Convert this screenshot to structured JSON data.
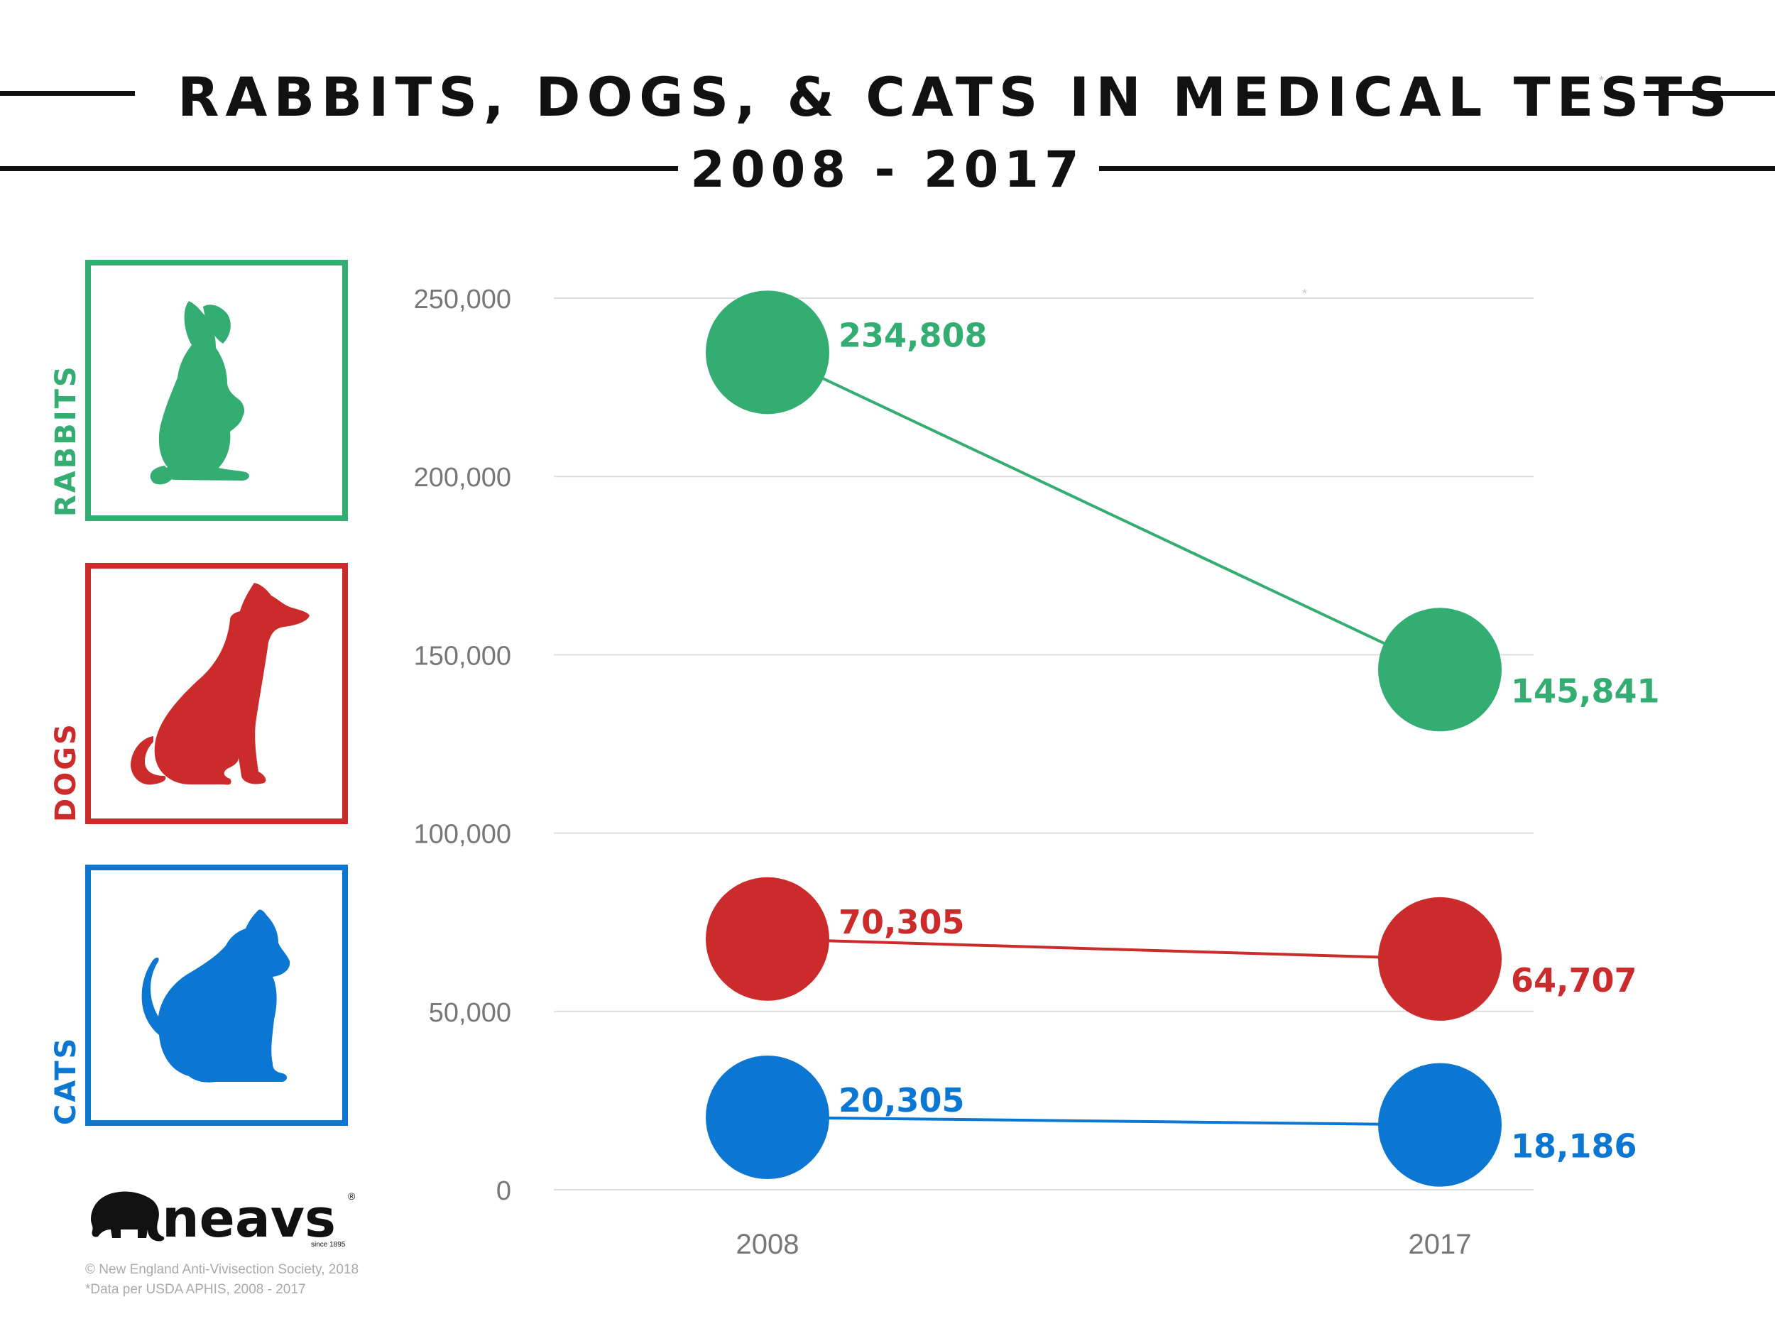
{
  "header": {
    "title": "RABBITS, DOGS, & CATS IN MEDICAL TESTS",
    "title_asterisk": "*",
    "subtitle": "2008 - 2017"
  },
  "panels": [
    {
      "label": "RABBITS",
      "color": "#34ad72",
      "icon": "rabbit-icon"
    },
    {
      "label": "DOGS",
      "color": "#cc2b2b",
      "icon": "dog-icon"
    },
    {
      "label": "CATS",
      "color": "#0c77d3",
      "icon": "cat-icon"
    }
  ],
  "chart_data": {
    "type": "line",
    "title": "RABBITS, DOGS, & CATS IN MEDICAL TESTS",
    "subtitle": "2008 - 2017",
    "categories": [
      "2008",
      "2017"
    ],
    "series": [
      {
        "name": "RABBITS",
        "color": "#34ad72",
        "values": [
          234808,
          145841
        ],
        "labels": [
          "234,808",
          "145,841"
        ]
      },
      {
        "name": "DOGS",
        "color": "#cc2b2b",
        "values": [
          70305,
          64707
        ],
        "labels": [
          "70,305",
          "64,707"
        ]
      },
      {
        "name": "CATS",
        "color": "#0c77d3",
        "values": [
          20305,
          18186
        ],
        "labels": [
          "20,305",
          "18,186"
        ]
      }
    ],
    "yticks": [
      0,
      50000,
      100000,
      150000,
      200000,
      250000
    ],
    "ytick_labels": [
      "0",
      "50,000",
      "100,000",
      "150,000",
      "200,000",
      "250,000"
    ],
    "ylim": [
      0,
      250000
    ],
    "grid": true,
    "legend": "left"
  },
  "logo": {
    "text": "neavs",
    "tagline": "since 1895",
    "registered": "®"
  },
  "footer": {
    "copyright": "© New England Anti-Vivisection Society, 2018",
    "source": "*Data per USDA APHIS, 2008 - 2017"
  }
}
